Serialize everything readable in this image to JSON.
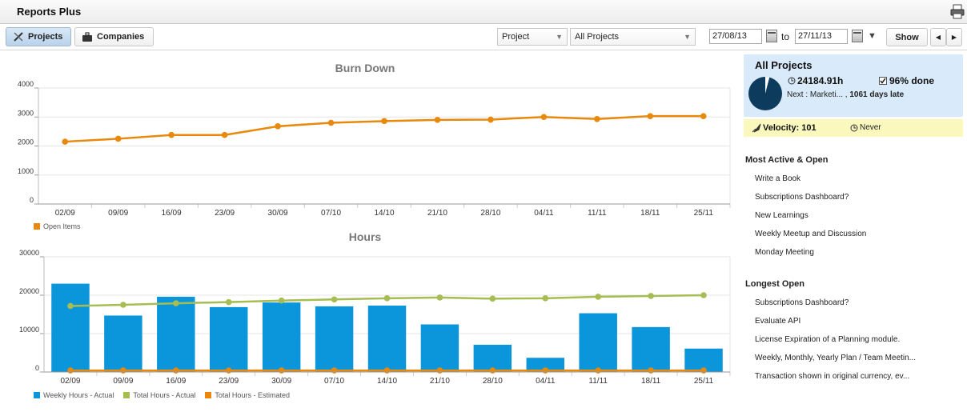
{
  "app": {
    "title": "Reports Plus",
    "print_icon": "printer-icon"
  },
  "toolbar": {
    "tabs": [
      {
        "label": "Projects",
        "icon": "tools-icon",
        "active": true
      },
      {
        "label": "Companies",
        "icon": "briefcase-icon",
        "active": false
      }
    ],
    "group_select": "Project",
    "project_select": "All Projects",
    "date_from": "27/08/13",
    "to_label": "to",
    "date_to": "27/11/13",
    "show_label": "Show",
    "prev_icon": "chevron-left-icon",
    "next_icon": "chevron-right-icon"
  },
  "summary": {
    "title": "All Projects",
    "hours": "24184.91h",
    "done": "96% done",
    "next_prefix": "Next : Marketi... ,",
    "next_late": "1061 days late",
    "done_fraction": 0.96,
    "velocity_label": "Velocity: 101",
    "never_label": "Never",
    "pie_color": "#0d3b5e"
  },
  "most_active": {
    "heading": "Most Active & Open",
    "items": [
      "Write a Book",
      "Subscriptions Dashboard?",
      "New Learnings",
      "Weekly Meetup and Discussion",
      "Monday Meeting"
    ]
  },
  "longest_open": {
    "heading": "Longest Open",
    "items": [
      "Subscriptions Dashboard?",
      "Evaluate API",
      "License Expiration of a Planning module.",
      "Weekly, Monthly, Yearly Plan / Team Meetin...",
      "Transaction shown in original currency, ev..."
    ]
  },
  "chart_data": [
    {
      "type": "line",
      "title": "Burn Down",
      "categories": [
        "02/09",
        "09/09",
        "16/09",
        "23/09",
        "30/09",
        "07/10",
        "14/10",
        "21/10",
        "28/10",
        "04/11",
        "11/11",
        "18/11",
        "25/11"
      ],
      "series": [
        {
          "name": "Open Items",
          "color": "#e8890c",
          "values": [
            2150,
            2250,
            2380,
            2380,
            2680,
            2800,
            2860,
            2900,
            2910,
            3000,
            2930,
            3030,
            3030
          ]
        }
      ],
      "ylim": [
        0,
        4000
      ],
      "yticks": [
        "0",
        "1000",
        "2000",
        "3000",
        "4000"
      ],
      "grid": true,
      "legend": "bottom-left"
    },
    {
      "type": "bar",
      "title": "Hours",
      "categories": [
        "02/09",
        "09/09",
        "16/09",
        "23/09",
        "30/09",
        "07/10",
        "14/10",
        "21/10",
        "28/10",
        "04/11",
        "11/11",
        "18/11",
        "25/11"
      ],
      "series": [
        {
          "name": "Weekly Hours - Actual",
          "type": "bar",
          "color": "#0b95db",
          "values": [
            23000,
            14700,
            19600,
            16900,
            18100,
            17100,
            17300,
            12400,
            7100,
            3700,
            15300,
            11700,
            6100
          ]
        },
        {
          "name": "Total Hours - Actual",
          "type": "line",
          "color": "#a5bd52",
          "values": [
            17200,
            17500,
            17900,
            18200,
            18600,
            18900,
            19200,
            19400,
            19100,
            19200,
            19600,
            19800,
            20000
          ]
        },
        {
          "name": "Total Hours - Estimated",
          "type": "line",
          "color": "#e8890c",
          "values": [
            400,
            400,
            400,
            400,
            400,
            400,
            400,
            400,
            400,
            400,
            400,
            400,
            400
          ]
        }
      ],
      "ylim": [
        0,
        30000
      ],
      "yticks": [
        "0",
        "10000",
        "20000",
        "30000"
      ],
      "grid": true,
      "legend": "bottom-left"
    }
  ]
}
